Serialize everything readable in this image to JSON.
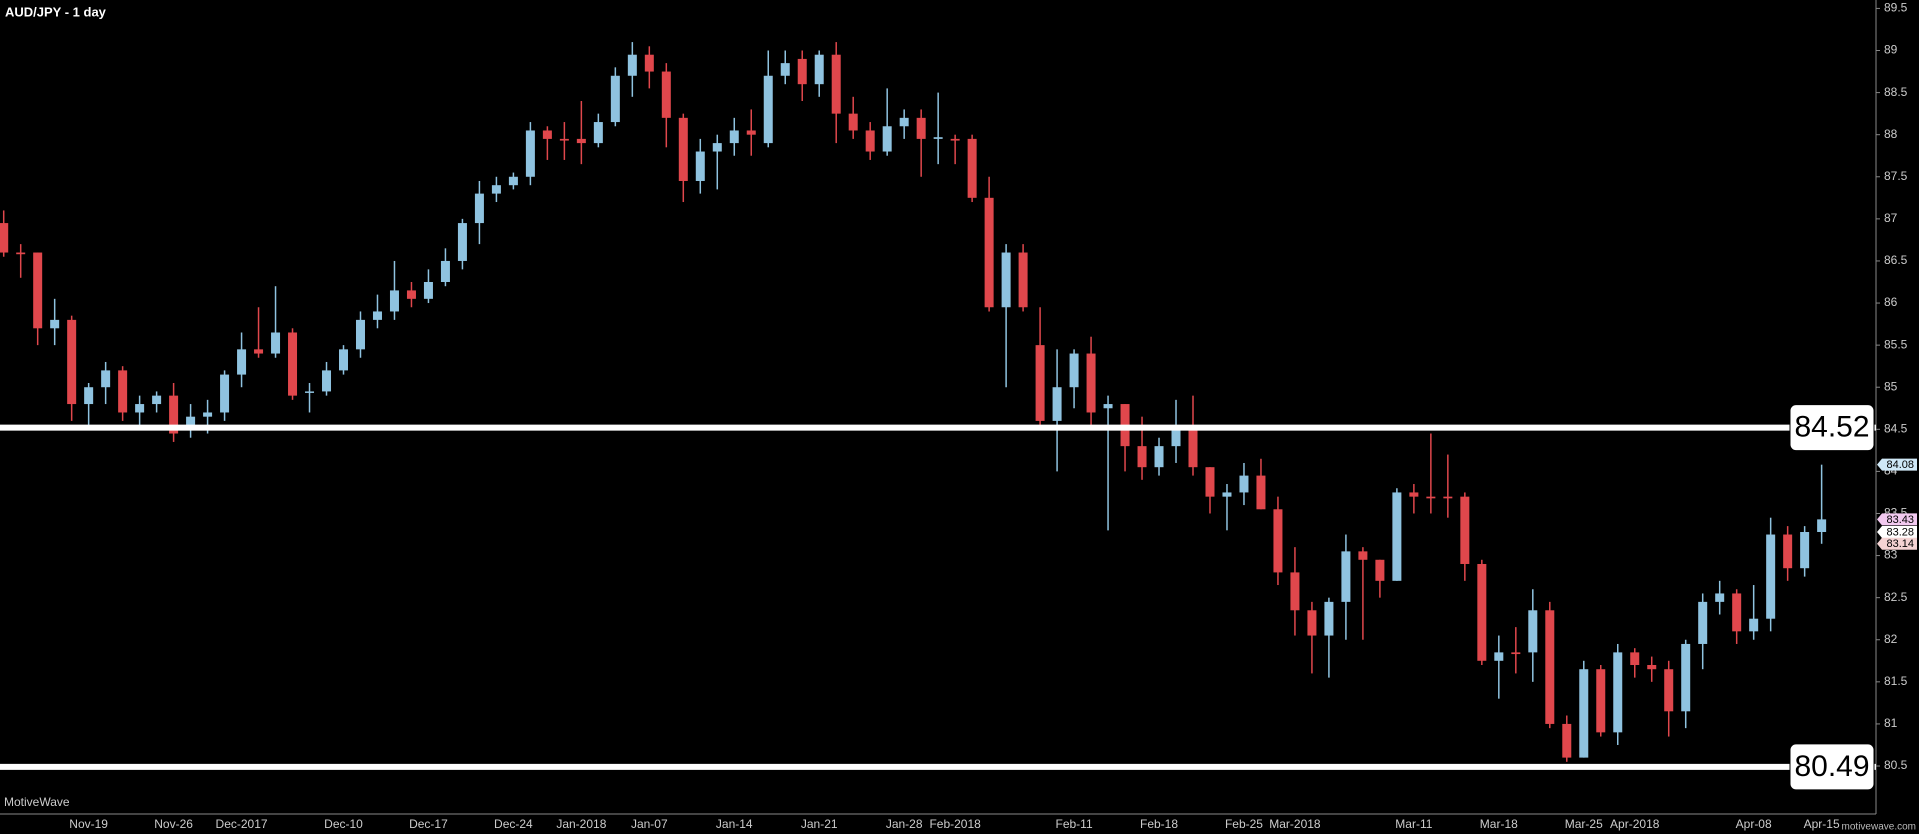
{
  "chart_data": {
    "type": "candlestick",
    "title": "AUD/JPY - 1 day",
    "brand": "MotiveWave",
    "watermark": "motivewave.com",
    "up_color": "#8fc3e0",
    "down_color": "#e0474c",
    "categories": [
      null,
      null,
      null,
      null,
      null,
      "Nov-19",
      null,
      null,
      null,
      null,
      "Nov-26",
      null,
      null,
      null,
      "Dec-2017",
      null,
      null,
      null,
      null,
      null,
      "Dec-10",
      null,
      null,
      null,
      null,
      "Dec-17",
      null,
      null,
      null,
      null,
      "Dec-24",
      null,
      null,
      null,
      "Jan-2018",
      null,
      null,
      null,
      "Jan-07",
      null,
      null,
      null,
      null,
      "Jan-14",
      null,
      null,
      null,
      null,
      "Jan-21",
      null,
      null,
      null,
      null,
      "Jan-28",
      null,
      null,
      "Feb-2018",
      null,
      null,
      null,
      null,
      null,
      null,
      "Feb-11",
      null,
      null,
      null,
      null,
      "Feb-18",
      null,
      null,
      null,
      null,
      "Feb-25",
      null,
      null,
      "Mar-2018",
      null,
      null,
      null,
      null,
      null,
      null,
      "Mar-11",
      null,
      null,
      null,
      null,
      "Mar-18",
      null,
      null,
      null,
      null,
      "Mar-25",
      null,
      null,
      "Apr-2018",
      null,
      null,
      null,
      null,
      null,
      null,
      "Apr-08",
      null,
      null,
      null,
      "Apr-15"
    ],
    "open": [
      86.95,
      86.6,
      86.6,
      85.7,
      85.8,
      84.8,
      85.0,
      85.2,
      84.7,
      84.8,
      84.9,
      84.5,
      84.65,
      84.7,
      85.15,
      85.45,
      85.4,
      85.65,
      84.95,
      84.95,
      85.2,
      85.45,
      85.8,
      85.9,
      86.15,
      86.05,
      86.25,
      86.5,
      86.95,
      87.3,
      87.4,
      87.5,
      88.05,
      87.95,
      87.95,
      87.9,
      88.15,
      88.7,
      88.95,
      88.75,
      88.2,
      87.45,
      87.8,
      87.9,
      88.05,
      87.9,
      88.7,
      88.9,
      88.6,
      88.95,
      88.25,
      88.05,
      87.8,
      88.1,
      88.2,
      87.95,
      87.95,
      87.95,
      87.25,
      85.95,
      86.6,
      85.5,
      84.6,
      85.0,
      85.4,
      84.75,
      84.8,
      84.3,
      84.05,
      84.3,
      84.55,
      84.05,
      83.7,
      83.75,
      83.95,
      83.55,
      82.8,
      82.35,
      82.05,
      82.45,
      83.05,
      82.95,
      82.7,
      83.75,
      83.7,
      83.7,
      83.7,
      82.9,
      81.75,
      81.85,
      81.85,
      82.35,
      81.0,
      80.6,
      81.65,
      80.9,
      81.85,
      81.7,
      81.65,
      81.15,
      81.95,
      82.45,
      82.55,
      82.1,
      82.25,
      83.25,
      82.85,
      83.28
    ],
    "high": [
      87.1,
      86.7,
      86.6,
      86.05,
      85.85,
      85.05,
      85.3,
      85.25,
      84.9,
      84.95,
      85.05,
      84.8,
      84.85,
      85.2,
      85.65,
      85.95,
      86.2,
      85.7,
      85.05,
      85.3,
      85.5,
      85.9,
      86.1,
      86.5,
      86.25,
      86.4,
      86.65,
      87.0,
      87.45,
      87.5,
      87.55,
      88.15,
      88.1,
      88.15,
      88.4,
      88.25,
      88.8,
      89.1,
      89.05,
      88.85,
      88.25,
      87.95,
      88.0,
      88.2,
      88.3,
      89.0,
      89.0,
      89.0,
      89.0,
      89.1,
      88.45,
      88.15,
      88.55,
      88.3,
      88.3,
      88.5,
      88.0,
      88.0,
      87.5,
      86.7,
      86.7,
      85.95,
      85.45,
      85.45,
      85.6,
      84.9,
      84.8,
      84.65,
      84.4,
      84.85,
      84.9,
      84.05,
      83.85,
      84.1,
      84.15,
      83.7,
      83.1,
      82.45,
      82.5,
      83.25,
      83.1,
      82.95,
      83.8,
      83.85,
      84.45,
      84.2,
      83.75,
      82.95,
      82.05,
      82.15,
      82.6,
      82.45,
      81.1,
      81.75,
      81.7,
      81.95,
      81.9,
      81.8,
      81.75,
      82.0,
      82.55,
      82.7,
      82.6,
      82.65,
      83.45,
      83.35,
      83.35,
      84.08
    ],
    "low": [
      86.55,
      86.3,
      85.5,
      85.5,
      84.6,
      84.5,
      84.8,
      84.6,
      84.55,
      84.7,
      84.35,
      84.4,
      84.45,
      84.6,
      85.0,
      85.35,
      85.35,
      84.85,
      84.7,
      84.9,
      85.15,
      85.35,
      85.7,
      85.8,
      85.95,
      86.0,
      86.2,
      86.4,
      86.7,
      87.2,
      87.35,
      87.4,
      87.7,
      87.7,
      87.65,
      87.85,
      88.1,
      88.45,
      88.55,
      87.85,
      87.2,
      87.3,
      87.35,
      87.75,
      87.75,
      87.85,
      88.6,
      88.4,
      88.45,
      87.9,
      87.95,
      87.7,
      87.75,
      87.95,
      87.5,
      87.65,
      87.65,
      87.2,
      85.9,
      85.0,
      85.9,
      84.55,
      84.0,
      84.75,
      84.5,
      83.3,
      84.0,
      83.9,
      83.95,
      84.1,
      83.95,
      83.5,
      83.3,
      83.6,
      83.55,
      82.65,
      82.05,
      81.6,
      81.55,
      82.0,
      82.0,
      82.5,
      82.7,
      83.5,
      83.5,
      83.45,
      82.7,
      81.7,
      81.3,
      81.6,
      81.5,
      80.95,
      80.55,
      80.6,
      80.85,
      80.75,
      81.55,
      81.5,
      80.85,
      80.95,
      81.65,
      82.3,
      81.95,
      82.0,
      82.1,
      82.7,
      82.75,
      83.14
    ],
    "close": [
      86.6,
      86.58,
      85.7,
      85.8,
      84.8,
      85.0,
      85.2,
      84.7,
      84.8,
      84.9,
      84.45,
      84.65,
      84.7,
      85.15,
      85.45,
      85.4,
      85.65,
      84.9,
      84.95,
      85.2,
      85.45,
      85.8,
      85.9,
      86.15,
      86.05,
      86.25,
      86.5,
      86.95,
      87.3,
      87.4,
      87.5,
      88.05,
      87.95,
      87.93,
      87.9,
      88.15,
      88.7,
      88.95,
      88.75,
      88.2,
      87.45,
      87.8,
      87.9,
      88.05,
      88.0,
      88.7,
      88.85,
      88.6,
      88.95,
      88.25,
      88.05,
      87.8,
      88.1,
      88.2,
      87.95,
      87.97,
      87.93,
      87.25,
      85.95,
      86.6,
      85.95,
      84.6,
      85.0,
      85.4,
      84.7,
      84.8,
      84.3,
      84.05,
      84.3,
      84.55,
      84.05,
      83.7,
      83.75,
      83.95,
      83.55,
      82.8,
      82.35,
      82.05,
      82.45,
      83.05,
      82.95,
      82.7,
      83.75,
      83.7,
      83.68,
      83.68,
      82.9,
      81.75,
      81.85,
      81.83,
      82.35,
      81.0,
      80.6,
      81.65,
      80.9,
      81.85,
      81.7,
      81.65,
      81.15,
      81.95,
      82.45,
      82.55,
      82.1,
      82.25,
      83.25,
      82.85,
      83.28,
      83.43
    ],
    "ylim": [
      79.93,
      89.6
    ],
    "yticks": [
      80.5,
      81,
      81.5,
      82,
      82.5,
      83,
      83.5,
      84,
      84.5,
      85,
      85.5,
      86,
      86.5,
      87,
      87.5,
      88,
      88.5,
      89,
      89.5
    ],
    "levels": [
      84.52,
      80.49
    ],
    "price_tags": [
      84.08,
      83.43,
      83.28,
      83.14
    ],
    "price_tag_colors": [
      "#cfe8f7",
      "#f2c9f0",
      "#ffffff",
      "#f5d3d3"
    ]
  }
}
